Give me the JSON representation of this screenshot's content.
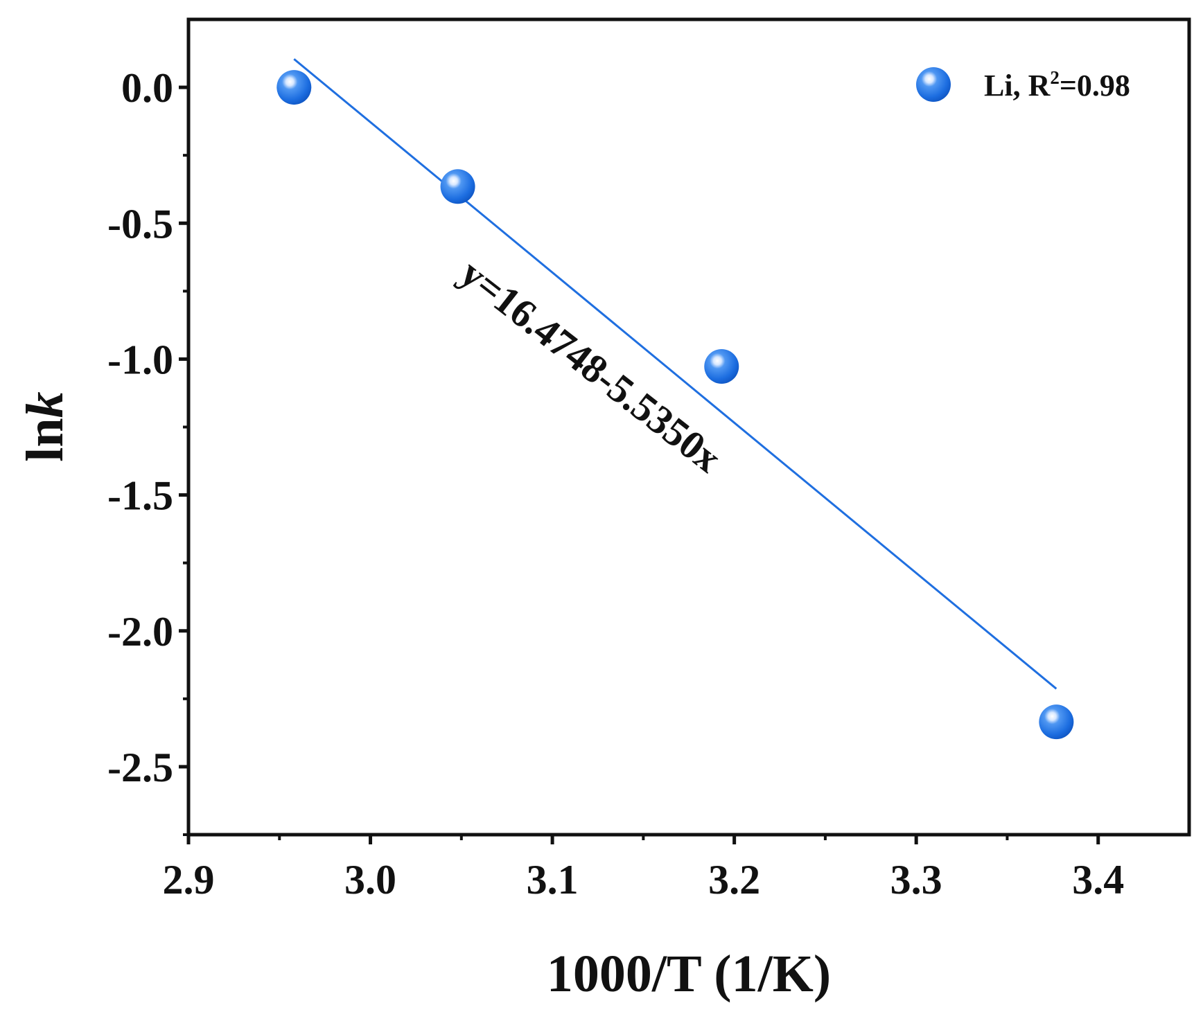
{
  "chart_data": {
    "type": "scatter",
    "xlabel": "1000/T (1/K)",
    "ylabel_main": "ln",
    "ylabel_italic": "k",
    "xlim": [
      2.9,
      3.45
    ],
    "ylim": [
      -2.75,
      0.25
    ],
    "xticks": [
      2.9,
      3.0,
      3.1,
      3.2,
      3.3,
      3.4
    ],
    "xtick_labels": [
      "2.9",
      "3.0",
      "3.1",
      "3.2",
      "3.3",
      "3.4"
    ],
    "yticks": [
      0.0,
      -0.5,
      -1.0,
      -1.5,
      -2.0,
      -2.5
    ],
    "ytick_labels": [
      "0.0",
      "-0.5",
      "-1.0",
      "-1.5",
      "-2.0",
      "-2.5"
    ],
    "series": [
      {
        "name": "Li",
        "x": [
          2.958,
          3.048,
          3.193,
          3.377
        ],
        "y": [
          0.0,
          -0.365,
          -1.027,
          -2.335
        ],
        "color": "#2f7fe8"
      }
    ],
    "fit_line": {
      "x": [
        2.958,
        3.377
      ],
      "y": [
        0.104,
        -2.213
      ],
      "color": "#1f6fe0"
    },
    "legend": {
      "label_prefix": "Li, R",
      "superscript": "2",
      "label_suffix": "=0.98",
      "position": "top-right"
    },
    "annotation": {
      "text": "y=16.4748-5.5350x"
    }
  }
}
